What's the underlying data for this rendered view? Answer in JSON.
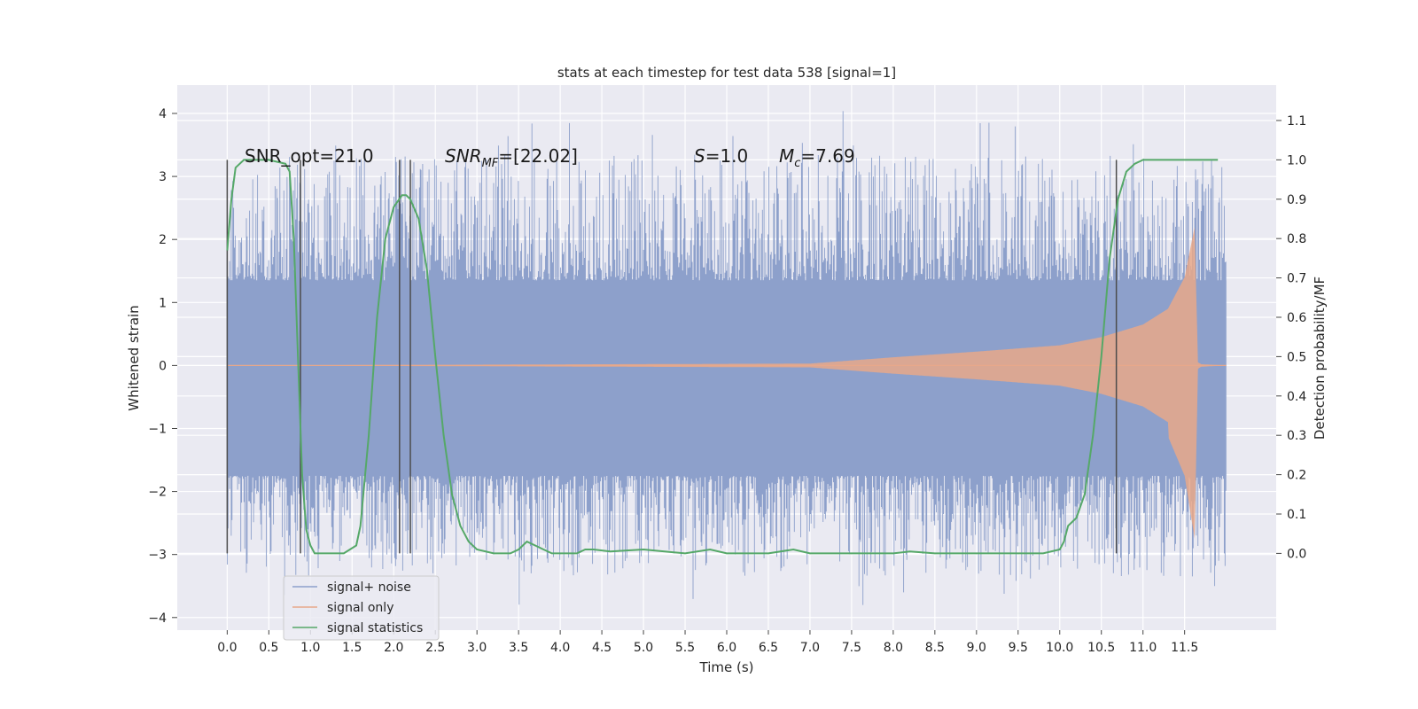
{
  "chart_data": {
    "type": "line",
    "title": "stats at each timestep for test data 538 [signal=1]",
    "xlabel": "Time (s)",
    "ylabel": "Whitened strain",
    "ylabel_right": "Detection probability/MF",
    "xlim": [
      -0.6,
      12.6
    ],
    "ylim": [
      -4.2,
      4.45
    ],
    "ylim_right": [
      -0.195,
      1.19
    ],
    "xticks": [
      0.0,
      0.5,
      1.0,
      1.5,
      2.0,
      2.5,
      3.0,
      3.5,
      4.0,
      4.5,
      5.0,
      5.5,
      6.0,
      6.5,
      7.0,
      7.5,
      8.0,
      8.5,
      9.0,
      9.5,
      10.0,
      10.5,
      11.0,
      11.5
    ],
    "xtick_labels": [
      "0.0",
      "0.5",
      "1.0",
      "1.5",
      "2.0",
      "2.5",
      "3.0",
      "3.5",
      "4.0",
      "4.5",
      "5.0",
      "5.5",
      "6.0",
      "6.5",
      "7.0",
      "7.5",
      "8.0",
      "8.5",
      "9.0",
      "9.5",
      "10.0",
      "10.5",
      "11.0",
      "11.5"
    ],
    "yticks": [
      -4,
      -3,
      -2,
      -1,
      0,
      1,
      2,
      3,
      4
    ],
    "ytick_labels": [
      "−4",
      "−3",
      "−2",
      "−1",
      "0",
      "1",
      "2",
      "3",
      "4"
    ],
    "yticks_right": [
      0.0,
      0.1,
      0.2,
      0.3,
      0.4,
      0.5,
      0.6,
      0.7,
      0.8,
      0.9,
      1.0,
      1.1
    ],
    "ytick_labels_right": [
      "0.0",
      "0.1",
      "0.2",
      "0.3",
      "0.4",
      "0.5",
      "0.6",
      "0.7",
      "0.8",
      "0.9",
      "1.0",
      "1.1"
    ],
    "grid": true,
    "legend_position": "lower-left",
    "series": [
      {
        "name": "signal+ noise",
        "color": "#8da0cb",
        "axis": "left",
        "x_range": [
          0.0,
          12.0
        ],
        "band_min": -1.75,
        "band_max": 1.35,
        "peak_min": -3.8,
        "peak_max": 4.1
      },
      {
        "name": "signal only",
        "color": "#e8a88a",
        "axis": "left",
        "x_range": [
          0.0,
          12.0
        ],
        "envelope": {
          "x": [
            0.0,
            7.0,
            7.5,
            8.0,
            9.0,
            10.0,
            10.5,
            11.0,
            11.3,
            11.5,
            11.62,
            11.66,
            11.7,
            12.0
          ],
          "y": [
            0.0,
            0.03,
            0.08,
            0.13,
            0.22,
            0.32,
            0.45,
            0.65,
            0.9,
            1.4,
            2.2,
            0.05,
            0.02,
            0.0
          ]
        }
      },
      {
        "name": "signal statistics",
        "color": "#55a868",
        "axis": "right",
        "x": [
          0.0,
          0.05,
          0.1,
          0.2,
          0.3,
          0.5,
          0.7,
          0.75,
          0.8,
          0.85,
          0.9,
          0.95,
          1.0,
          1.05,
          1.1,
          1.2,
          1.4,
          1.55,
          1.6,
          1.7,
          1.8,
          1.9,
          2.0,
          2.1,
          2.15,
          2.2,
          2.3,
          2.4,
          2.5,
          2.6,
          2.7,
          2.8,
          2.9,
          3.0,
          3.2,
          3.4,
          3.5,
          3.6,
          3.7,
          3.8,
          3.9,
          4.0,
          4.2,
          4.3,
          4.4,
          4.6,
          5.0,
          5.5,
          5.8,
          6.0,
          6.5,
          6.8,
          7.0,
          7.5,
          8.0,
          8.2,
          8.5,
          9.0,
          9.5,
          9.8,
          10.0,
          10.05,
          10.1,
          10.2,
          10.3,
          10.4,
          10.5,
          10.6,
          10.7,
          10.8,
          10.9,
          11.0,
          11.2,
          11.5,
          11.9
        ],
        "y": [
          0.77,
          0.9,
          0.98,
          1.0,
          1.0,
          1.0,
          0.99,
          0.97,
          0.8,
          0.5,
          0.2,
          0.06,
          0.02,
          0.0,
          0.0,
          0.0,
          0.0,
          0.02,
          0.07,
          0.3,
          0.6,
          0.8,
          0.88,
          0.91,
          0.91,
          0.9,
          0.85,
          0.72,
          0.5,
          0.3,
          0.15,
          0.07,
          0.03,
          0.01,
          0.0,
          0.0,
          0.01,
          0.03,
          0.02,
          0.01,
          0.0,
          0.0,
          0.0,
          0.01,
          0.01,
          0.005,
          0.01,
          0.0,
          0.01,
          0.0,
          0.0,
          0.01,
          0.0,
          0.0,
          0.0,
          0.005,
          0.0,
          0.0,
          0.0,
          0.0,
          0.01,
          0.03,
          0.07,
          0.09,
          0.15,
          0.3,
          0.5,
          0.75,
          0.9,
          0.97,
          0.99,
          1.0,
          1.0,
          1.0,
          1.0
        ]
      }
    ],
    "vertical_lines": {
      "color": "#4c4c4c",
      "x": [
        0.0,
        0.88,
        2.07,
        2.2,
        10.68
      ],
      "y_range_right": [
        0.0,
        1.0
      ]
    },
    "annotations": {
      "snr_opt": "SNR_opt=21.0",
      "snr_mf_main": "SNR",
      "snr_mf_sub": "MF",
      "snr_mf_value": "=[22.02]",
      "s_var": "S",
      "s_value": "=1.0",
      "mc_var": "M",
      "mc_sub": "c",
      "mc_value": "=7.69"
    },
    "legend": {
      "item0": "signal+ noise",
      "item1": "signal only",
      "item2": "signal statistics"
    }
  }
}
